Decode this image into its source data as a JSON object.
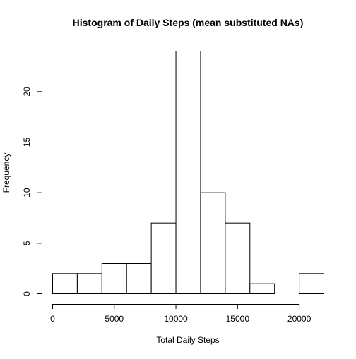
{
  "chart_data": {
    "type": "bar",
    "title": "Histogram of Daily Steps (mean substituted NAs)",
    "xlabel": "Total Daily Steps",
    "ylabel": "Frequency",
    "bins": [
      {
        "start": 0,
        "end": 2000,
        "count": 2
      },
      {
        "start": 2000,
        "end": 4000,
        "count": 2
      },
      {
        "start": 4000,
        "end": 6000,
        "count": 3
      },
      {
        "start": 6000,
        "end": 8000,
        "count": 3
      },
      {
        "start": 8000,
        "end": 10000,
        "count": 7
      },
      {
        "start": 10000,
        "end": 12000,
        "count": 24
      },
      {
        "start": 12000,
        "end": 14000,
        "count": 10
      },
      {
        "start": 14000,
        "end": 16000,
        "count": 7
      },
      {
        "start": 16000,
        "end": 18000,
        "count": 1
      },
      {
        "start": 18000,
        "end": 20000,
        "count": 0
      },
      {
        "start": 20000,
        "end": 22000,
        "count": 2
      }
    ],
    "xlim": [
      0,
      22000
    ],
    "ylim": [
      0,
      24
    ],
    "x_ticks": [
      0,
      5000,
      10000,
      15000,
      20000
    ],
    "x_tick_labels": [
      "0",
      "5000",
      "10000",
      "15000",
      "20000"
    ],
    "y_ticks": [
      0,
      5,
      10,
      15,
      20
    ],
    "y_tick_labels": [
      "0",
      "5",
      "10",
      "15",
      "20"
    ],
    "grid": false,
    "legend": "none",
    "colors": {
      "bar_fill": "#ffffff",
      "bar_stroke": "#000000",
      "axis": "#000000",
      "background": "#ffffff"
    }
  }
}
